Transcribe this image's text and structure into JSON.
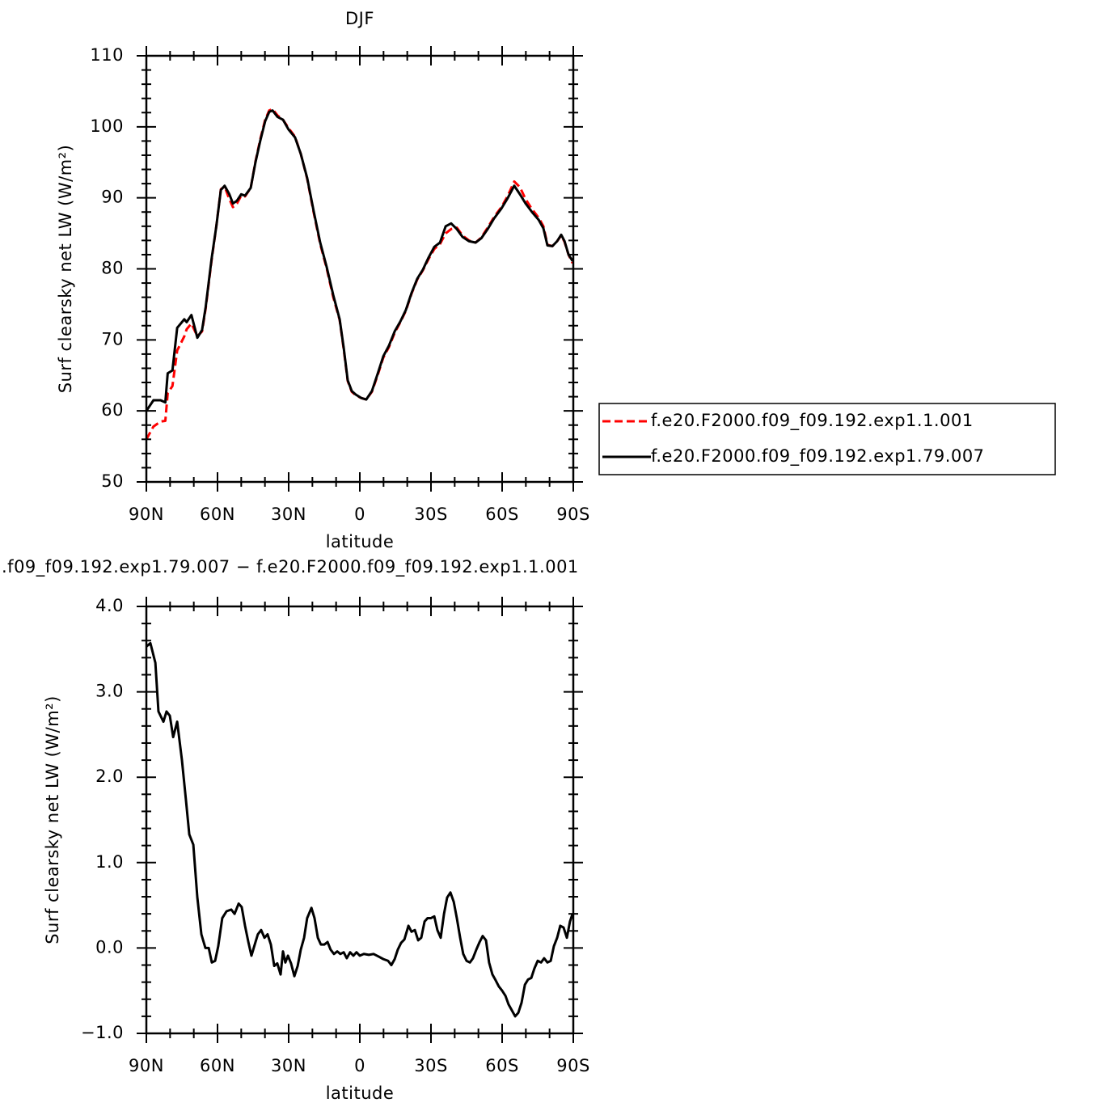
{
  "chart_data": [
    {
      "type": "line",
      "title": "DJF",
      "xlabel": "latitude",
      "ylabel": "Surf clearsky net LW (W/m²)",
      "x": [
        90,
        87,
        84,
        82,
        81,
        79,
        77,
        74,
        73,
        71,
        68.5,
        66.5,
        65,
        62.5,
        60.5,
        58.6,
        57,
        55,
        53.5,
        51.8,
        50,
        48.4,
        46,
        44,
        42,
        39.9,
        38.2,
        36.8,
        34.7,
        32.4,
        30,
        27.3,
        24.9,
        22.2,
        19.5,
        16.7,
        14,
        11.2,
        8.5,
        6.8,
        5.1,
        3.4,
        1.7,
        -0.7,
        -2.7,
        -5.1,
        -7.5,
        -9.9,
        -12.3,
        -14.7,
        -17.1,
        -19.4,
        -21.8,
        -24.2,
        -26.6,
        -29,
        -31.4,
        -33.8,
        -36.2,
        -38.5,
        -40.9,
        -43.3,
        -46,
        -48.8,
        -51.2,
        -53.9,
        -56.6,
        -59.7,
        -62.4,
        -65.1,
        -67.5,
        -69.9,
        -72.6,
        -75.4,
        -77.4,
        -79.1,
        -81.2,
        -83.2,
        -84.9,
        -86.3,
        -88,
        -89.7
      ],
      "series": [
        {
          "name": "f.e20.F2000.f09_f09.192.exp1.1.001",
          "color": "#ff0000",
          "dash": true,
          "values": [
            56,
            57.8,
            58.5,
            58.6,
            62.5,
            63.5,
            68.5,
            70.5,
            71.5,
            72.3,
            70.5,
            71.2,
            74.4,
            81.2,
            86,
            91.2,
            91.6,
            89.8,
            88.7,
            89.2,
            90.3,
            90.2,
            91.4,
            95.1,
            98.2,
            101,
            102.3,
            102.5,
            101.6,
            101,
            99.8,
            98.6,
            96.2,
            92.7,
            88,
            83.5,
            80.1,
            76,
            72.8,
            68.7,
            64.2,
            62.7,
            62.2,
            61.8,
            61.6,
            62.7,
            65,
            67.5,
            69,
            71,
            72.5,
            74.1,
            76.5,
            78.5,
            79.8,
            81.4,
            82.8,
            83.5,
            85,
            85.6,
            85.8,
            84.7,
            84,
            83.7,
            84.4,
            85.8,
            87.3,
            88.7,
            90.3,
            92.3,
            91.5,
            89.8,
            88.4,
            87.2,
            86,
            83.4,
            83.2,
            83.9,
            84.7,
            83.8,
            82,
            80.8
          ]
        },
        {
          "name": "f.e20.F2000.f09_f09.192.exp1.79.007",
          "color": "#000000",
          "dash": false,
          "values": [
            60,
            61.5,
            61.5,
            61.2,
            65.3,
            65.7,
            71.7,
            72.9,
            72.5,
            73.5,
            70.3,
            71.4,
            74.6,
            81.4,
            86,
            91.1,
            91.7,
            90.5,
            89.2,
            89.6,
            90.5,
            90.3,
            91.4,
            95,
            98,
            100.8,
            102.1,
            102.3,
            101.4,
            101,
            99.6,
            98.5,
            96.2,
            92.8,
            88.2,
            83.7,
            80.3,
            76.3,
            72.9,
            68.9,
            64.3,
            62.8,
            62.3,
            61.8,
            61.6,
            62.8,
            65.2,
            67.7,
            69.2,
            71.2,
            72.6,
            74.2,
            76.6,
            78.6,
            79.9,
            81.6,
            83.1,
            83.7,
            86,
            86.4,
            85.6,
            84.5,
            83.9,
            83.7,
            84.3,
            85.6,
            87.1,
            88.5,
            90,
            91.7,
            90.5,
            89.2,
            88,
            86.9,
            85.7,
            83.3,
            83.2,
            83.9,
            84.8,
            83.9,
            82,
            81.1
          ]
        }
      ],
      "xlim": [
        90,
        -90
      ],
      "xticks": [
        {
          "value": 90,
          "label": "90N"
        },
        {
          "value": 60,
          "label": "60N"
        },
        {
          "value": 30,
          "label": "30N"
        },
        0,
        {
          "value": -30,
          "label": "30S"
        },
        {
          "value": -60,
          "label": "60S"
        },
        {
          "value": -90,
          "label": "90S"
        }
      ],
      "xminorticks": [
        80,
        70,
        50,
        40,
        20,
        10,
        -10,
        -20,
        -40,
        -50,
        -70,
        -80
      ],
      "ylim": [
        50,
        110
      ],
      "yticks": [
        50,
        60,
        70,
        80,
        90,
        100,
        110
      ],
      "yminorticks": [
        52,
        54,
        56,
        58,
        62,
        64,
        66,
        68,
        72,
        74,
        76,
        78,
        82,
        84,
        86,
        88,
        92,
        94,
        96,
        98,
        102,
        104,
        106,
        108
      ],
      "legend": "right"
    },
    {
      "type": "line",
      "title": ".f09_f09.192.exp1.79.007 − f.e20.F2000.f09_f09.192.exp1.1.001",
      "xlabel": "latitude",
      "ylabel": "Surf clearsky net LW (W/m²)",
      "x": [
        90,
        88.3,
        86.2,
        84.9,
        82.8,
        81.5,
        80.1,
        78.7,
        77,
        75,
        73.3,
        71.9,
        70.2,
        68.5,
        66.8,
        65.1,
        63.7,
        62.4,
        61,
        59.7,
        58,
        56.2,
        54.2,
        52.8,
        51.1,
        49.8,
        48.4,
        47,
        45.7,
        44.3,
        43,
        41.6,
        40.2,
        38.9,
        37.5,
        36.1,
        34.8,
        33.4,
        32.4,
        31.4,
        30.3,
        29,
        27.6,
        26.2,
        24.9,
        23.5,
        22.2,
        20.4,
        19.1,
        17.7,
        16.4,
        15,
        13.6,
        12.3,
        10.9,
        9.5,
        8.2,
        6.8,
        5.5,
        4.1,
        2.7,
        1.4,
        0,
        -1.7,
        -3.8,
        -5.8,
        -7.9,
        -9.9,
        -11.9,
        -13.3,
        -14.7,
        -16,
        -17.4,
        -18.8,
        -20.5,
        -21.8,
        -23.2,
        -24.6,
        -25.9,
        -27.3,
        -28.6,
        -30,
        -31.4,
        -32.7,
        -34.1,
        -35.5,
        -36.8,
        -38.2,
        -39.6,
        -40.9,
        -42.3,
        -43.6,
        -45,
        -46.4,
        -47.7,
        -49.1,
        -50.5,
        -51.8,
        -53.2,
        -54.5,
        -55.9,
        -57.3,
        -58.6,
        -60,
        -61.4,
        -62.7,
        -64.1,
        -65.5,
        -66.8,
        -68.2,
        -69.6,
        -70.9,
        -72.3,
        -73.6,
        -75,
        -76.4,
        -77.7,
        -79.1,
        -80.5,
        -81.8,
        -83.2,
        -84.5,
        -85.9,
        -87.3,
        -88.6,
        -89.7
      ],
      "series": [
        {
          "color": "#000000",
          "dash": false,
          "values": [
            3.53,
            3.57,
            3.34,
            2.77,
            2.65,
            2.77,
            2.72,
            2.47,
            2.65,
            2.2,
            1.73,
            1.33,
            1.21,
            0.59,
            0.16,
            0,
            0,
            -0.17,
            -0.15,
            0.02,
            0.35,
            0.43,
            0.45,
            0.4,
            0.52,
            0.48,
            0.26,
            0.07,
            -0.09,
            0.04,
            0.16,
            0.21,
            0.12,
            0.16,
            0.04,
            -0.21,
            -0.18,
            -0.31,
            -0.04,
            -0.17,
            -0.09,
            -0.18,
            -0.33,
            -0.21,
            -0.02,
            0.12,
            0.35,
            0.47,
            0.35,
            0.12,
            0.04,
            0.04,
            0.07,
            -0.02,
            -0.07,
            -0.04,
            -0.07,
            -0.05,
            -0.12,
            -0.05,
            -0.09,
            -0.05,
            -0.09,
            -0.07,
            -0.08,
            -0.07,
            -0.1,
            -0.13,
            -0.15,
            -0.2,
            -0.13,
            -0.02,
            0.06,
            0.1,
            0.26,
            0.19,
            0.21,
            0.09,
            0.12,
            0.31,
            0.35,
            0.35,
            0.37,
            0.21,
            0.12,
            0.4,
            0.59,
            0.65,
            0.54,
            0.35,
            0.12,
            -0.07,
            -0.15,
            -0.17,
            -0.12,
            -0.02,
            0.07,
            0.14,
            0.09,
            -0.17,
            -0.31,
            -0.38,
            -0.45,
            -0.5,
            -0.56,
            -0.66,
            -0.73,
            -0.8,
            -0.76,
            -0.64,
            -0.43,
            -0.37,
            -0.35,
            -0.24,
            -0.15,
            -0.17,
            -0.12,
            -0.17,
            -0.15,
            0.02,
            0.12,
            0.26,
            0.24,
            0.12,
            0.31,
            0.4
          ]
        }
      ],
      "xlim": [
        90,
        -90
      ],
      "xticks": [
        {
          "value": 90,
          "label": "90N"
        },
        {
          "value": 60,
          "label": "60N"
        },
        {
          "value": 30,
          "label": "30N"
        },
        0,
        {
          "value": -30,
          "label": "30S"
        },
        {
          "value": -60,
          "label": "60S"
        },
        {
          "value": -90,
          "label": "90S"
        }
      ],
      "xminorticks": [
        80,
        70,
        50,
        40,
        20,
        10,
        -10,
        -20,
        -40,
        -50,
        -70,
        -80
      ],
      "ylim": [
        -1,
        4
      ],
      "yticks": [
        {
          "value": -1,
          "label": "−1.0"
        },
        {
          "value": 0,
          "label": "0.0"
        },
        {
          "value": 1,
          "label": "1.0"
        },
        {
          "value": 2,
          "label": "2.0"
        },
        {
          "value": 3,
          "label": "3.0"
        },
        {
          "value": 4,
          "label": "4.0"
        }
      ],
      "yminorticks": [
        -0.8,
        -0.6,
        -0.4,
        -0.2,
        0.2,
        0.4,
        0.6,
        0.8,
        1.2,
        1.4,
        1.6,
        1.8,
        2.2,
        2.4,
        2.6,
        2.8,
        3.2,
        3.4,
        3.6,
        3.8
      ]
    }
  ]
}
